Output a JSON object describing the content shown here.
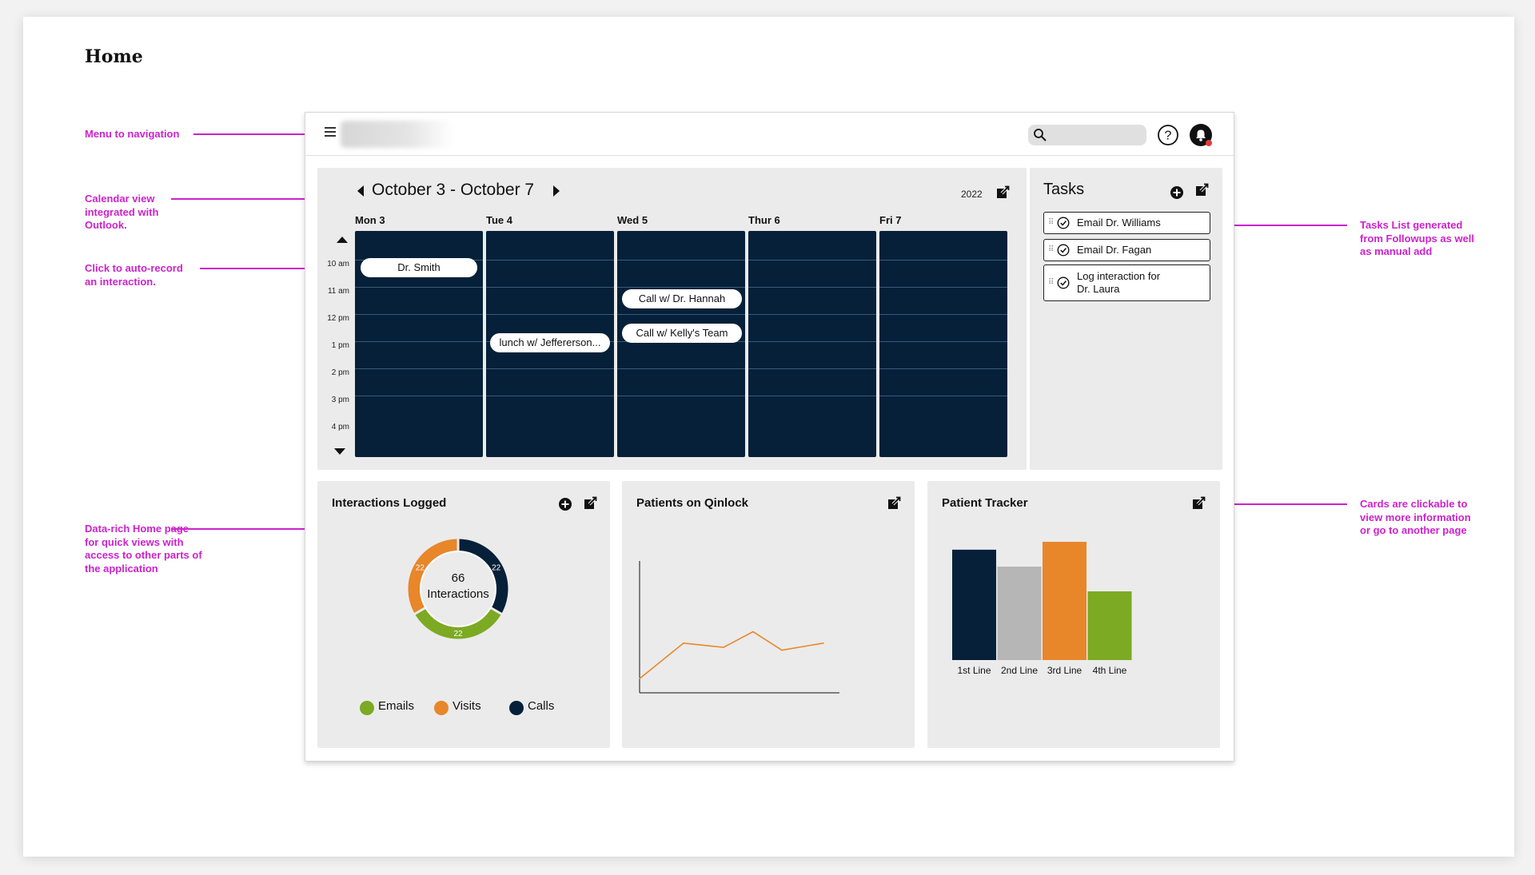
{
  "page": {
    "title": "Home"
  },
  "annotations": [
    {
      "id": "menu",
      "text": "Menu to navigation"
    },
    {
      "id": "calendar",
      "text": "Calendar view integrated with Outlook."
    },
    {
      "id": "autorecord",
      "text": "Click to auto-record an interaction."
    },
    {
      "id": "datarich",
      "text": "Data-rich Home page for quick views with access to other parts of the application"
    },
    {
      "id": "tasks",
      "text": "Tasks List generated from Followups as well as manual add"
    },
    {
      "id": "cards",
      "text": "Cards are clickable to view more information or go to another page"
    }
  ],
  "calendar": {
    "range": "October 3 - October 7",
    "year": "2022",
    "days": [
      "Mon 3",
      "Tue 4",
      "Wed 5",
      "Thur 6",
      "Fri 7"
    ],
    "times": [
      "10 am",
      "11 am",
      "12 pm",
      "1 pm",
      "2 pm",
      "3 pm",
      "4 pm"
    ],
    "events": [
      {
        "day": "Mon 3",
        "label": "Dr. Smith"
      },
      {
        "day": "Tue 4",
        "label": "lunch w/ Jeffererson..."
      },
      {
        "day": "Wed 5",
        "label": "Call w/ Dr. Hannah"
      },
      {
        "day": "Wed 5",
        "label": "Call w/ Kelly's Team"
      }
    ]
  },
  "tasks": {
    "title": "Tasks",
    "items": [
      {
        "label": "Email Dr. Williams"
      },
      {
        "label": "Email Dr. Fagan"
      },
      {
        "label_line1": "Log interaction for",
        "label_line2": "Dr. Laura"
      }
    ]
  },
  "interactions": {
    "title": "Interactions Logged",
    "center_count": "66",
    "center_label": "Interactions",
    "segment_labels": [
      "22",
      "22",
      "22"
    ],
    "legend": [
      "Emails",
      "Visits",
      "Calls"
    ]
  },
  "patients": {
    "title": "Patients on Qinlock"
  },
  "tracker": {
    "title": "Patient Tracker",
    "categories": [
      "1st Line",
      "2nd Line",
      "3rd Line",
      "4th Line"
    ]
  },
  "colors": {
    "navy": "#062039",
    "green": "#7caa22",
    "orange": "#e8862a",
    "gray": "#b6b6b6",
    "annotation": "#cc22cc"
  },
  "icons": [
    "menu-icon",
    "search-icon",
    "help-icon",
    "bell-icon",
    "edit-icon",
    "add-icon",
    "check-circle-icon",
    "drag-handle-icon",
    "arrow-left-icon",
    "arrow-right-icon",
    "arrow-up-icon",
    "arrow-down-icon"
  ],
  "chart_data": [
    {
      "type": "pie",
      "title": "Interactions Logged",
      "labels": [
        "Emails",
        "Visits",
        "Calls"
      ],
      "values": [
        22,
        22,
        22
      ],
      "colors": [
        "#7caa22",
        "#e8862a",
        "#062039"
      ]
    },
    {
      "type": "line",
      "title": "Patients on Qinlock",
      "values": [
        0.5,
        1.75,
        1.6,
        2.15,
        1.5,
        1.75
      ],
      "ylim": [
        0,
        4.5
      ]
    },
    {
      "type": "bar",
      "title": "Patient Tracker",
      "categories": [
        "1st Line",
        "2nd Line",
        "3rd Line",
        "4th Line"
      ],
      "values": [
        4.9,
        4.15,
        5.25,
        3.05
      ],
      "colors": [
        "#062039",
        "#b6b6b6",
        "#e8862a",
        "#7caa22"
      ],
      "ylim": [
        0,
        5.5
      ]
    }
  ]
}
